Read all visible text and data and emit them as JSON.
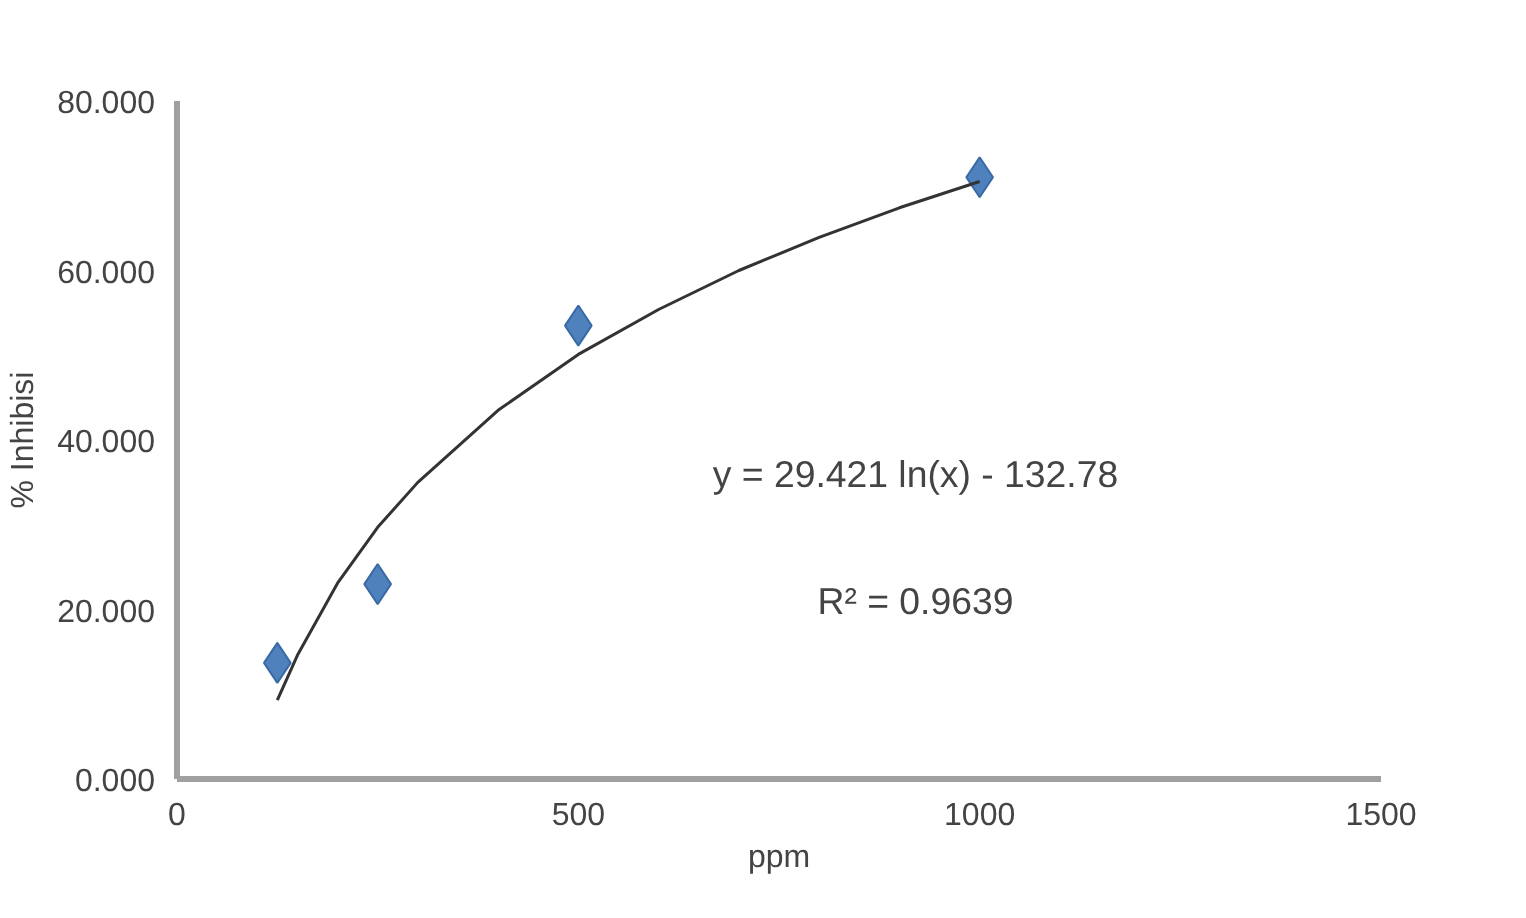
{
  "chart_data": {
    "type": "scatter",
    "xlabel": "ppm",
    "ylabel": "% Inhibisi",
    "xlim": [
      0,
      1500
    ],
    "xticks": [
      0,
      500,
      1000,
      1500
    ],
    "ylim": [
      0,
      80
    ],
    "yticks": [
      {
        "value": 0,
        "label": "0.000"
      },
      {
        "value": 20,
        "label": "20.000"
      },
      {
        "value": 40,
        "label": "40.000"
      },
      {
        "value": 60,
        "label": "60.000"
      },
      {
        "value": 80,
        "label": "80.000"
      }
    ],
    "grid": false,
    "series": [
      {
        "marker": "diamond",
        "color": "#4f81bd",
        "x": [
          125,
          250,
          500,
          1000
        ],
        "values": [
          13.7,
          23,
          53.5,
          71
        ]
      },
      {
        "type": "line",
        "marker": "none",
        "line_style": "solid",
        "color": "#333333",
        "x": [
          125,
          150,
          200,
          250,
          300,
          400,
          500,
          600,
          700,
          800,
          900,
          1000
        ],
        "values": [
          9.3,
          14.6,
          23.1,
          29.7,
          35,
          43.5,
          50.1,
          55.4,
          60,
          63.9,
          67.4,
          70.5
        ]
      }
    ],
    "annotations": [
      "y = 29.421 ln(x) - 132.78",
      "R² = 0.9639"
    ]
  }
}
